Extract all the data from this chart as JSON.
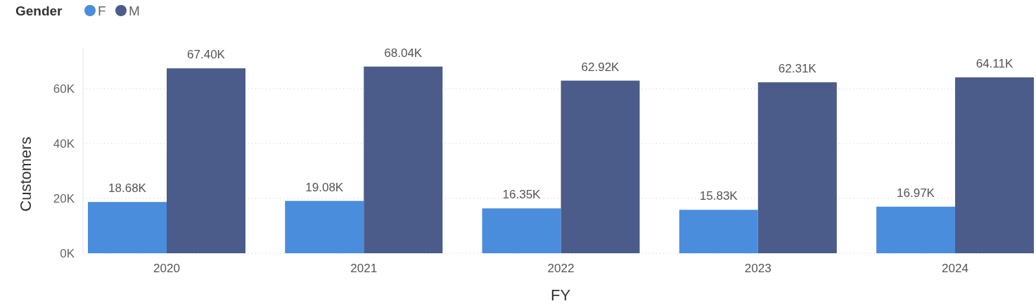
{
  "chart_data": {
    "type": "bar",
    "xlabel": "FY",
    "ylabel": "Customers",
    "legend_title": "Gender",
    "legend": "top left",
    "grid": "y",
    "categories": [
      "2020",
      "2021",
      "2022",
      "2023",
      "2024"
    ],
    "series": [
      {
        "name": "F",
        "color": "#4a8ddc",
        "values": [
          18680,
          19080,
          16350,
          15830,
          16970
        ],
        "value_labels": [
          "18.68K",
          "19.08K",
          "16.35K",
          "15.83K",
          "16.97K"
        ]
      },
      {
        "name": "M",
        "color": "#4b5c8a",
        "values": [
          67400,
          68040,
          62920,
          62310,
          64110
        ],
        "value_labels": [
          "67.40K",
          "68.04K",
          "62.92K",
          "62.31K",
          "64.11K"
        ]
      }
    ],
    "ylim": [
      0,
      75000
    ],
    "yticks": [
      {
        "value": 0,
        "label": "0K"
      },
      {
        "value": 20000,
        "label": "20K"
      },
      {
        "value": 40000,
        "label": "40K"
      },
      {
        "value": 60000,
        "label": "60K"
      }
    ]
  }
}
